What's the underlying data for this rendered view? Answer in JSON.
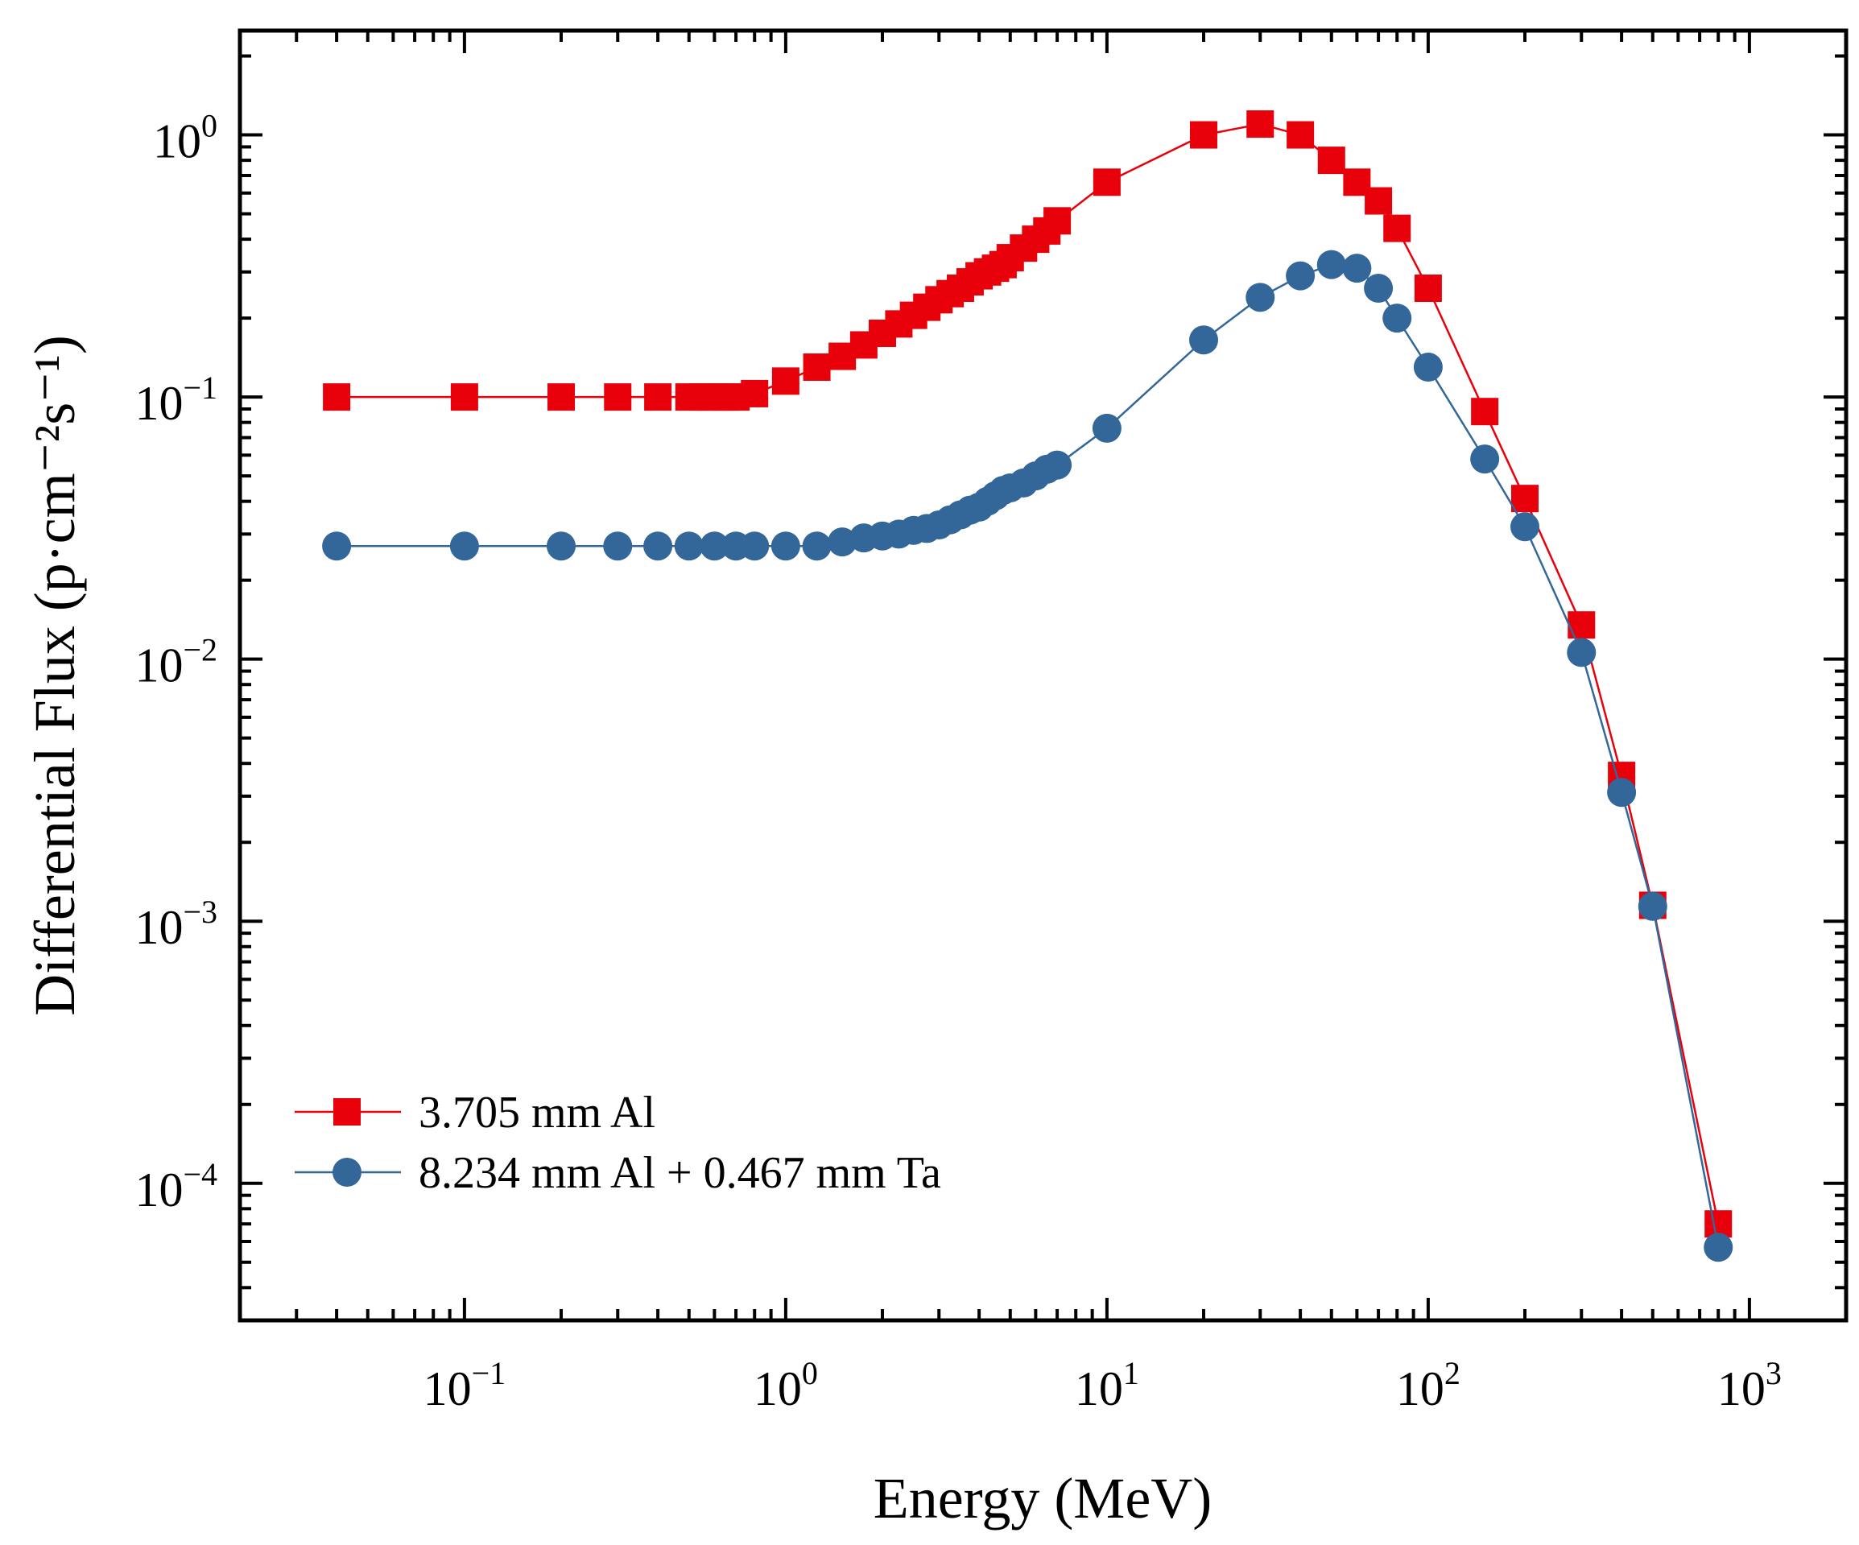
{
  "chart_data": {
    "type": "line",
    "title": "",
    "xlabel": "Energy (MeV)",
    "ylabel": "Differential Flux (p·cm⁻²s⁻¹)",
    "xscale": "log",
    "yscale": "log",
    "xlim": [
      0.02,
      2000
    ],
    "ylim": [
      3e-05,
      2.5
    ],
    "xticks": [
      {
        "base": "10",
        "exp": "−1",
        "value": 0.1
      },
      {
        "base": "10",
        "exp": "0",
        "value": 1
      },
      {
        "base": "10",
        "exp": "1",
        "value": 10
      },
      {
        "base": "10",
        "exp": "2",
        "value": 100
      },
      {
        "base": "10",
        "exp": "3",
        "value": 1000
      }
    ],
    "yticks": [
      {
        "base": "10",
        "exp": "0",
        "value": 1
      },
      {
        "base": "10",
        "exp": "−1",
        "value": 0.1
      },
      {
        "base": "10",
        "exp": "−2",
        "value": 0.01
      },
      {
        "base": "10",
        "exp": "−3",
        "value": 0.001
      },
      {
        "base": "10",
        "exp": "−4",
        "value": 0.0001
      }
    ],
    "legend_position": "bottom-left",
    "series": [
      {
        "name": "3.705 mm Al",
        "color": "#e8000b",
        "marker": "square",
        "x": [
          0.04,
          0.1,
          0.2,
          0.3,
          0.4,
          0.5,
          0.55,
          0.6,
          0.65,
          0.7,
          0.8,
          1.0,
          1.25,
          1.5,
          1.75,
          2.0,
          2.25,
          2.5,
          2.75,
          3.0,
          3.25,
          3.5,
          3.75,
          4.0,
          4.25,
          4.5,
          4.75,
          5.0,
          5.5,
          6.0,
          6.5,
          7.0,
          10,
          20,
          30,
          40,
          50,
          60,
          70,
          80,
          100,
          150,
          200,
          300,
          400,
          500,
          800
        ],
        "y": [
          0.1,
          0.1,
          0.1,
          0.1,
          0.1,
          0.1,
          0.1,
          0.1,
          0.1,
          0.1,
          0.103,
          0.115,
          0.13,
          0.143,
          0.158,
          0.175,
          0.19,
          0.205,
          0.22,
          0.235,
          0.248,
          0.26,
          0.275,
          0.29,
          0.3,
          0.31,
          0.32,
          0.34,
          0.37,
          0.4,
          0.43,
          0.47,
          0.66,
          1.0,
          1.1,
          1.0,
          0.8,
          0.66,
          0.56,
          0.44,
          0.26,
          0.088,
          0.041,
          0.0135,
          0.0036,
          0.00115,
          7e-05
        ]
      },
      {
        "name": "8.234 mm Al + 0.467 mm Ta",
        "color": "#336699",
        "marker": "circle",
        "x": [
          0.04,
          0.1,
          0.2,
          0.3,
          0.4,
          0.5,
          0.6,
          0.7,
          0.8,
          1.0,
          1.25,
          1.5,
          1.75,
          2.0,
          2.25,
          2.5,
          2.75,
          3.0,
          3.25,
          3.5,
          3.75,
          4.0,
          4.25,
          4.5,
          4.75,
          5.0,
          5.5,
          6.0,
          6.5,
          7.0,
          10,
          20,
          30,
          40,
          50,
          60,
          70,
          80,
          100,
          150,
          200,
          300,
          400,
          500,
          800
        ],
        "y": [
          0.027,
          0.027,
          0.027,
          0.027,
          0.027,
          0.027,
          0.027,
          0.027,
          0.027,
          0.027,
          0.027,
          0.028,
          0.029,
          0.0295,
          0.03,
          0.031,
          0.0315,
          0.0325,
          0.034,
          0.0355,
          0.037,
          0.038,
          0.04,
          0.042,
          0.044,
          0.045,
          0.047,
          0.05,
          0.053,
          0.055,
          0.076,
          0.165,
          0.24,
          0.29,
          0.32,
          0.31,
          0.26,
          0.2,
          0.13,
          0.058,
          0.032,
          0.0106,
          0.0031,
          0.00114,
          5.7e-05
        ]
      }
    ]
  }
}
